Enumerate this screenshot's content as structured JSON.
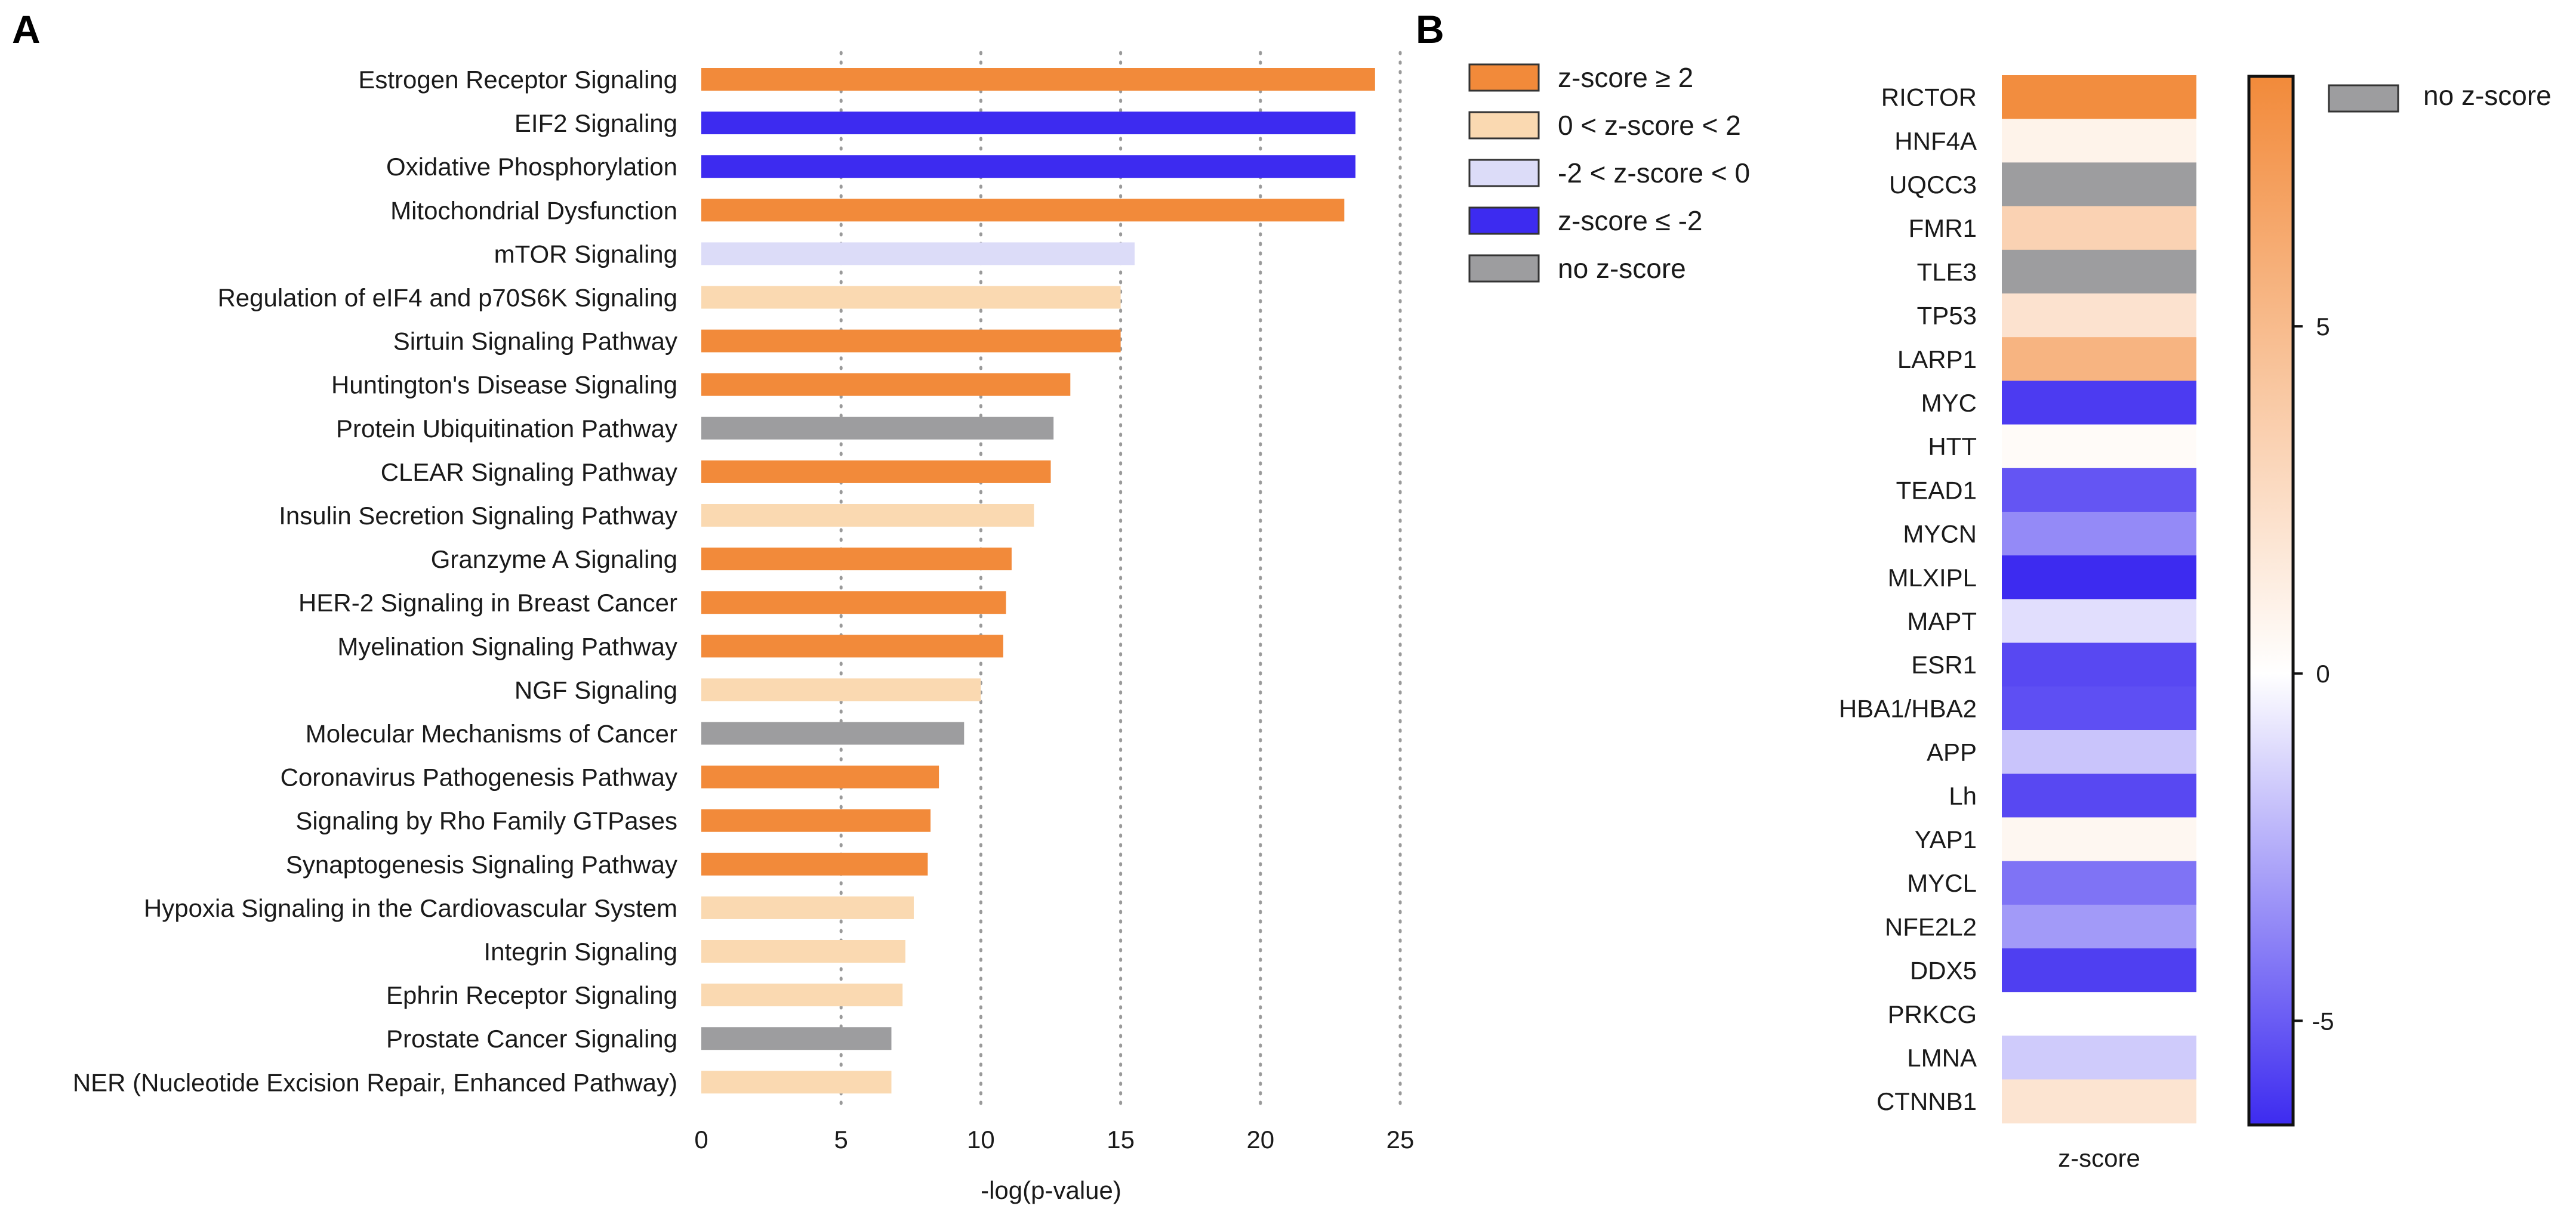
{
  "panels": {
    "a": "A",
    "b": "B"
  },
  "chart_data": [
    {
      "type": "bar",
      "orientation": "horizontal",
      "panel": "A",
      "categories": [
        "Estrogen Receptor Signaling",
        "EIF2 Signaling",
        "Oxidative Phosphorylation",
        "Mitochondrial Dysfunction",
        "mTOR Signaling",
        "Regulation of eIF4 and p70S6K Signaling",
        "Sirtuin Signaling Pathway",
        "Huntington's Disease Signaling",
        "Protein Ubiquitination Pathway",
        "CLEAR Signaling Pathway",
        "Insulin Secretion Signaling Pathway",
        "Granzyme A Signaling",
        "HER-2 Signaling in Breast Cancer",
        "Myelination Signaling Pathway",
        "NGF Signaling",
        "Molecular Mechanisms of Cancer",
        "Coronavirus Pathogenesis Pathway",
        "Signaling by Rho Family GTPases",
        "Synaptogenesis Signaling Pathway",
        "Hypoxia Signaling in the Cardiovascular System",
        "Integrin Signaling",
        "Ephrin Receptor Signaling",
        "Prostate Cancer Signaling",
        "NER (Nucleotide Excision Repair, Enhanced Pathway)"
      ],
      "values": [
        24.1,
        23.4,
        23.4,
        23.0,
        15.5,
        15.0,
        15.0,
        13.2,
        12.6,
        12.5,
        11.9,
        11.1,
        10.9,
        10.8,
        10.0,
        9.4,
        8.5,
        8.2,
        8.1,
        7.6,
        7.3,
        7.2,
        6.8,
        6.8
      ],
      "zscore_class": [
        "pos_strong",
        "neg_strong",
        "neg_strong",
        "pos_strong",
        "neg_weak",
        "pos_weak",
        "pos_strong",
        "pos_strong",
        "none",
        "pos_strong",
        "pos_weak",
        "pos_strong",
        "pos_strong",
        "pos_strong",
        "pos_weak",
        "none",
        "pos_strong",
        "pos_strong",
        "pos_strong",
        "pos_weak",
        "pos_weak",
        "pos_weak",
        "none",
        "pos_weak"
      ],
      "xlabel": "-log(p-value)",
      "ylabel": "",
      "xlim": [
        0,
        25
      ],
      "xticks": [
        0,
        5,
        10,
        15,
        20,
        25
      ],
      "grid": "dotted vertical",
      "legend": {
        "position": "top-right",
        "entries": [
          {
            "key": "pos_strong",
            "label": "z-score ≥ 2",
            "color": "#f28a3a"
          },
          {
            "key": "pos_weak",
            "label": "0 < z-score < 2",
            "color": "#fad9b1"
          },
          {
            "key": "neg_weak",
            "label": "-2 < z-score < 0",
            "color": "#dcdcf8"
          },
          {
            "key": "neg_strong",
            "label": "z-score ≤ -2",
            "color": "#3d2bf0"
          },
          {
            "key": "none",
            "label": "no z-score",
            "color": "#9d9d9f"
          }
        ]
      }
    },
    {
      "type": "heatmap",
      "panel": "B",
      "rows": [
        "RICTOR",
        "HNF4A",
        "UQCC3",
        "FMR1",
        "TLE3",
        "TP53",
        "LARP1",
        "MYC",
        "HTT",
        "TEAD1",
        "MYCN",
        "MLXIPL",
        "MAPT",
        "ESR1",
        "HBA1/HBA2",
        "APP",
        "Lh",
        "YAP1",
        "MYCL",
        "NFE2L2",
        "DDX5",
        "PRKCG",
        "LMNA",
        "CTNNB1"
      ],
      "columns": [
        "z-score"
      ],
      "values": [
        8.4,
        0.9,
        null,
        3.3,
        null,
        2.1,
        5.5,
        -6.0,
        0.3,
        -5.2,
        -3.6,
        -6.8,
        -1.0,
        -5.6,
        -5.4,
        -1.8,
        -5.6,
        0.6,
        -4.3,
        -3.1,
        -5.9,
        0.0,
        -1.6,
        2.0
      ],
      "xlabel": "z-score",
      "colorbar": {
        "min": -6.5,
        "max": 8.6,
        "ticks": [
          -5,
          0,
          5
        ],
        "min_color": "#3d2bf0",
        "mid_color": "#ffffff",
        "max_color": "#f28a3a"
      },
      "missing": {
        "label": "no z-score",
        "color": "#9d9d9f"
      }
    }
  ]
}
